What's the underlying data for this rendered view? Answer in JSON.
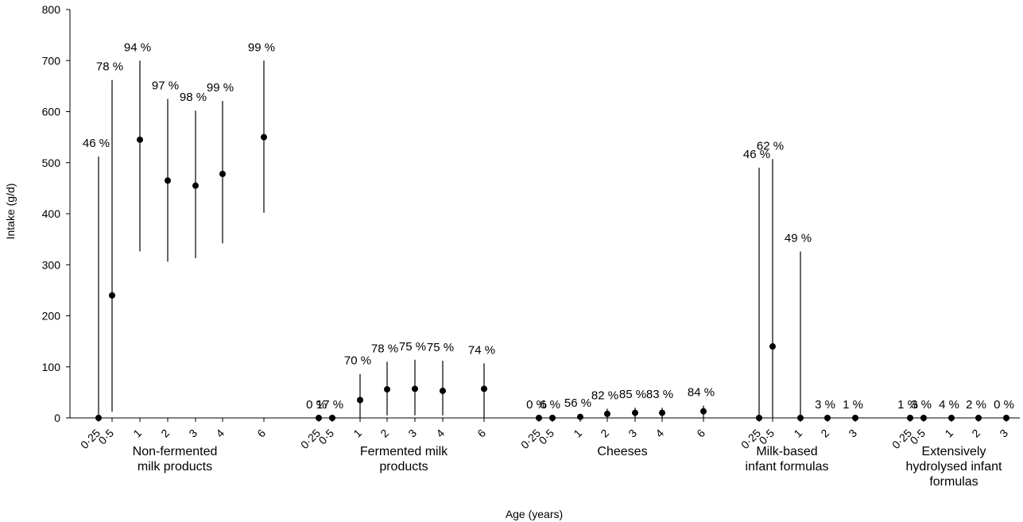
{
  "chart_data": {
    "type": "scatter",
    "xlabel": "Age (years)",
    "ylabel": "Intake (g/d)",
    "ylim": [
      0,
      800
    ],
    "yticks": [
      "0",
      "100",
      "200",
      "300",
      "400",
      "500",
      "600",
      "700",
      "800"
    ],
    "grid": false,
    "groups": [
      {
        "name": "Non-fermented milk products",
        "label_lines": [
          "Non-fermented",
          "milk products"
        ],
        "points": [
          {
            "age": "0·25",
            "value": 0,
            "low": 0,
            "high": 512,
            "pct": "46 %"
          },
          {
            "age": "0·5",
            "value": 240,
            "low": 12,
            "high": 662,
            "pct": "78 %"
          },
          {
            "age": "1",
            "value": 545,
            "low": 326,
            "high": 700,
            "pct": "94 %"
          },
          {
            "age": "2",
            "value": 465,
            "low": 306,
            "high": 625,
            "pct": "97 %"
          },
          {
            "age": "3",
            "value": 455,
            "low": 313,
            "high": 602,
            "pct": "98 %"
          },
          {
            "age": "4",
            "value": 478,
            "low": 342,
            "high": 621,
            "pct": "99 %"
          },
          {
            "age": "6",
            "value": 550,
            "low": 402,
            "high": 700,
            "pct": "99 %"
          }
        ]
      },
      {
        "name": "Fermented milk products",
        "label_lines": [
          "Fermented milk",
          "products"
        ],
        "points": [
          {
            "age": "0·25",
            "value": 0,
            "low": 0,
            "high": 0,
            "pct": "0 %"
          },
          {
            "age": "0·5",
            "value": 0,
            "low": 0,
            "high": 0,
            "pct": "17 %"
          },
          {
            "age": "1",
            "value": 35,
            "low": 0,
            "high": 86,
            "pct": "70 %"
          },
          {
            "age": "2",
            "value": 56,
            "low": 5,
            "high": 110,
            "pct": "78 %"
          },
          {
            "age": "3",
            "value": 57,
            "low": 5,
            "high": 114,
            "pct": "75 %"
          },
          {
            "age": "4",
            "value": 53,
            "low": 5,
            "high": 112,
            "pct": "75 %"
          },
          {
            "age": "6",
            "value": 57,
            "low": 0,
            "high": 107,
            "pct": "74 %"
          }
        ]
      },
      {
        "name": "Cheeses",
        "label_lines": [
          "Cheeses"
        ],
        "points": [
          {
            "age": "0·25",
            "value": 0,
            "low": 0,
            "high": 0,
            "pct": "0 %"
          },
          {
            "age": "0·5",
            "value": 0,
            "low": 0,
            "high": 0,
            "pct": "6 %"
          },
          {
            "age": "1",
            "value": 2,
            "low": 0,
            "high": 3,
            "pct": "56 %"
          },
          {
            "age": "2",
            "value": 8,
            "low": 0,
            "high": 18,
            "pct": "82 %"
          },
          {
            "age": "3",
            "value": 10,
            "low": 0,
            "high": 20,
            "pct": "85 %"
          },
          {
            "age": "4",
            "value": 10,
            "low": 0,
            "high": 20,
            "pct": "83 %"
          },
          {
            "age": "6",
            "value": 13,
            "low": 0,
            "high": 24,
            "pct": "84 %"
          }
        ]
      },
      {
        "name": "Milk-based infant formulas",
        "label_lines": [
          "Milk-based",
          "infant formulas"
        ],
        "points": [
          {
            "age": "0·25",
            "value": 0,
            "low": 0,
            "high": 490,
            "pct": "46 %"
          },
          {
            "age": "0·5",
            "value": 140,
            "low": 0,
            "high": 507,
            "pct": "62 %"
          },
          {
            "age": "1",
            "value": 0,
            "low": 0,
            "high": 326,
            "pct": "49 %"
          },
          {
            "age": "2",
            "value": 0,
            "low": 0,
            "high": 0,
            "pct": "3 %"
          },
          {
            "age": "3",
            "value": 0,
            "low": 0,
            "high": 0,
            "pct": "1 %"
          }
        ]
      },
      {
        "name": "Extensively hydrolysed infant formulas",
        "label_lines": [
          "Extensively",
          "hydrolysed infant",
          "formulas"
        ],
        "points": [
          {
            "age": "0·25",
            "value": 0,
            "low": 0,
            "high": 0,
            "pct": "1 %"
          },
          {
            "age": "0·5",
            "value": 0,
            "low": 0,
            "high": 0,
            "pct": "3 %"
          },
          {
            "age": "1",
            "value": 0,
            "low": 0,
            "high": 0,
            "pct": "4 %"
          },
          {
            "age": "2",
            "value": 0,
            "low": 0,
            "high": 0,
            "pct": "2 %"
          },
          {
            "age": "3",
            "value": 0,
            "low": 0,
            "high": 0,
            "pct": "0 %"
          }
        ]
      }
    ]
  }
}
